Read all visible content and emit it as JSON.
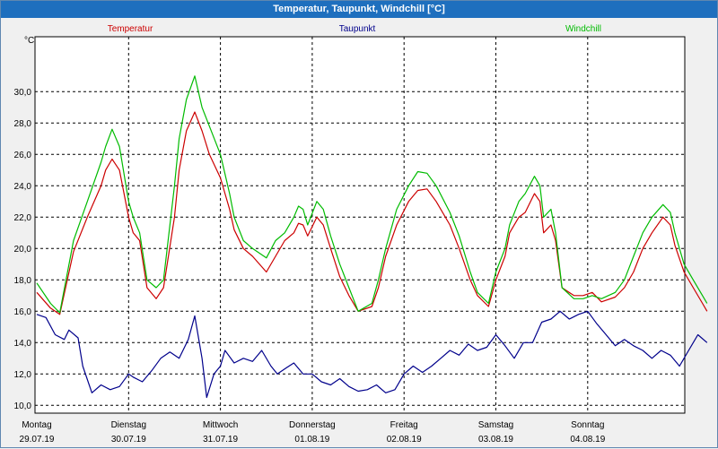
{
  "window": {
    "title": "Temperatur, Taupunkt, Windchill [°C]"
  },
  "chart_data": {
    "type": "line",
    "title": "Temperatur, Taupunkt, Windchill [°C]",
    "ylabel": "°C",
    "ylim": [
      9.5,
      33.5
    ],
    "xlim": [
      0,
      7.3
    ],
    "grid": true,
    "legend_position": "top",
    "y_ticks": [
      "10,0",
      "12,0",
      "14,0",
      "16,0",
      "18,0",
      "20,0",
      "22,0",
      "24,0",
      "26,0",
      "28,0",
      "30,0"
    ],
    "y_tick_values": [
      10,
      12,
      14,
      16,
      18,
      20,
      22,
      24,
      26,
      28,
      30
    ],
    "x_ticks": [
      {
        "pos": 0,
        "day": "Montag",
        "date": "29.07.19"
      },
      {
        "pos": 1,
        "day": "Dienstag",
        "date": "30.07.19"
      },
      {
        "pos": 2,
        "day": "Mittwoch",
        "date": "31.07.19"
      },
      {
        "pos": 3,
        "day": "Donnerstag",
        "date": "01.08.19"
      },
      {
        "pos": 4,
        "day": "Freitag",
        "date": "02.08.19"
      },
      {
        "pos": 5,
        "day": "Samstag",
        "date": "03.08.19"
      },
      {
        "pos": 6,
        "day": "Sonntag",
        "date": "04.08.19"
      }
    ],
    "series": [
      {
        "name": "Temperatur",
        "color": "#cc0000",
        "points": [
          [
            0.0,
            17.2
          ],
          [
            0.15,
            16.2
          ],
          [
            0.25,
            15.8
          ],
          [
            0.4,
            19.8
          ],
          [
            0.55,
            22.0
          ],
          [
            0.7,
            24.0
          ],
          [
            0.75,
            25.0
          ],
          [
            0.82,
            25.7
          ],
          [
            0.9,
            25.0
          ],
          [
            1.0,
            22.0
          ],
          [
            1.05,
            21.0
          ],
          [
            1.12,
            20.5
          ],
          [
            1.2,
            17.5
          ],
          [
            1.3,
            16.8
          ],
          [
            1.38,
            17.5
          ],
          [
            1.5,
            22.0
          ],
          [
            1.55,
            25.0
          ],
          [
            1.63,
            27.5
          ],
          [
            1.72,
            28.7
          ],
          [
            1.8,
            27.5
          ],
          [
            1.88,
            26.0
          ],
          [
            2.0,
            24.5
          ],
          [
            2.1,
            22.5
          ],
          [
            2.15,
            21.2
          ],
          [
            2.25,
            20.0
          ],
          [
            2.35,
            19.5
          ],
          [
            2.5,
            18.5
          ],
          [
            2.6,
            19.5
          ],
          [
            2.7,
            20.5
          ],
          [
            2.8,
            21.0
          ],
          [
            2.85,
            21.6
          ],
          [
            2.9,
            21.5
          ],
          [
            2.95,
            20.8
          ],
          [
            3.05,
            22.0
          ],
          [
            3.12,
            21.5
          ],
          [
            3.2,
            20.0
          ],
          [
            3.3,
            18.2
          ],
          [
            3.4,
            17.0
          ],
          [
            3.5,
            16.0
          ],
          [
            3.65,
            16.3
          ],
          [
            3.72,
            17.5
          ],
          [
            3.8,
            19.5
          ],
          [
            3.92,
            21.5
          ],
          [
            4.05,
            23.0
          ],
          [
            4.15,
            23.7
          ],
          [
            4.25,
            23.8
          ],
          [
            4.35,
            23.0
          ],
          [
            4.5,
            21.5
          ],
          [
            4.6,
            20.0
          ],
          [
            4.72,
            18.0
          ],
          [
            4.8,
            17.0
          ],
          [
            4.92,
            16.3
          ],
          [
            5.0,
            18.0
          ],
          [
            5.1,
            19.5
          ],
          [
            5.15,
            21.0
          ],
          [
            5.25,
            22.0
          ],
          [
            5.32,
            22.3
          ],
          [
            5.42,
            23.5
          ],
          [
            5.48,
            23.0
          ],
          [
            5.52,
            21.0
          ],
          [
            5.6,
            21.5
          ],
          [
            5.65,
            20.5
          ],
          [
            5.72,
            17.5
          ],
          [
            5.85,
            17.0
          ],
          [
            5.95,
            17.0
          ],
          [
            6.05,
            17.2
          ],
          [
            6.15,
            16.6
          ],
          [
            6.3,
            16.9
          ],
          [
            6.4,
            17.5
          ],
          [
            6.5,
            18.5
          ],
          [
            6.6,
            20.0
          ],
          [
            6.7,
            21.0
          ],
          [
            6.82,
            22.0
          ],
          [
            6.9,
            21.5
          ],
          [
            6.95,
            20.2
          ],
          [
            7.05,
            18.5
          ],
          [
            7.15,
            17.5
          ],
          [
            7.25,
            16.5
          ],
          [
            7.3,
            16.0
          ]
        ]
      },
      {
        "name": "Taupunkt",
        "color": "#00008b",
        "points": [
          [
            0.0,
            15.8
          ],
          [
            0.1,
            15.6
          ],
          [
            0.2,
            14.5
          ],
          [
            0.3,
            14.2
          ],
          [
            0.35,
            14.8
          ],
          [
            0.45,
            14.3
          ],
          [
            0.5,
            12.5
          ],
          [
            0.6,
            10.8
          ],
          [
            0.7,
            11.3
          ],
          [
            0.8,
            11.0
          ],
          [
            0.9,
            11.2
          ],
          [
            1.0,
            12.0
          ],
          [
            1.05,
            11.8
          ],
          [
            1.15,
            11.5
          ],
          [
            1.25,
            12.2
          ],
          [
            1.35,
            13.0
          ],
          [
            1.45,
            13.4
          ],
          [
            1.55,
            13.0
          ],
          [
            1.65,
            14.2
          ],
          [
            1.72,
            15.7
          ],
          [
            1.8,
            13.0
          ],
          [
            1.85,
            10.5
          ],
          [
            1.93,
            12.0
          ],
          [
            2.0,
            12.5
          ],
          [
            2.05,
            13.5
          ],
          [
            2.15,
            12.7
          ],
          [
            2.25,
            13.0
          ],
          [
            2.35,
            12.8
          ],
          [
            2.45,
            13.5
          ],
          [
            2.55,
            12.5
          ],
          [
            2.62,
            12.0
          ],
          [
            2.72,
            12.4
          ],
          [
            2.8,
            12.7
          ],
          [
            2.9,
            12.0
          ],
          [
            3.0,
            12.0
          ],
          [
            3.1,
            11.5
          ],
          [
            3.2,
            11.3
          ],
          [
            3.3,
            11.7
          ],
          [
            3.4,
            11.2
          ],
          [
            3.5,
            10.9
          ],
          [
            3.6,
            11.0
          ],
          [
            3.7,
            11.3
          ],
          [
            3.8,
            10.8
          ],
          [
            3.9,
            11.0
          ],
          [
            4.0,
            12.0
          ],
          [
            4.1,
            12.5
          ],
          [
            4.2,
            12.1
          ],
          [
            4.3,
            12.5
          ],
          [
            4.4,
            13.0
          ],
          [
            4.5,
            13.5
          ],
          [
            4.6,
            13.2
          ],
          [
            4.7,
            13.9
          ],
          [
            4.8,
            13.5
          ],
          [
            4.9,
            13.7
          ],
          [
            5.0,
            14.5
          ],
          [
            5.1,
            13.8
          ],
          [
            5.2,
            13.0
          ],
          [
            5.3,
            14.0
          ],
          [
            5.4,
            14.0
          ],
          [
            5.5,
            15.3
          ],
          [
            5.6,
            15.5
          ],
          [
            5.7,
            16.0
          ],
          [
            5.8,
            15.5
          ],
          [
            5.9,
            15.8
          ],
          [
            6.0,
            16.0
          ],
          [
            6.1,
            15.2
          ],
          [
            6.2,
            14.5
          ],
          [
            6.3,
            13.8
          ],
          [
            6.4,
            14.2
          ],
          [
            6.5,
            13.8
          ],
          [
            6.6,
            13.5
          ],
          [
            6.7,
            13.0
          ],
          [
            6.8,
            13.5
          ],
          [
            6.9,
            13.2
          ],
          [
            7.0,
            12.5
          ],
          [
            7.1,
            13.5
          ],
          [
            7.2,
            14.5
          ],
          [
            7.3,
            14.0
          ]
        ]
      },
      {
        "name": "Windchill",
        "color": "#00bb00",
        "points": [
          [
            0.0,
            17.8
          ],
          [
            0.15,
            16.5
          ],
          [
            0.25,
            15.9
          ],
          [
            0.4,
            20.5
          ],
          [
            0.55,
            23.0
          ],
          [
            0.7,
            25.5
          ],
          [
            0.75,
            26.5
          ],
          [
            0.82,
            27.6
          ],
          [
            0.9,
            26.5
          ],
          [
            1.0,
            23.0
          ],
          [
            1.05,
            22.0
          ],
          [
            1.12,
            21.0
          ],
          [
            1.2,
            18.0
          ],
          [
            1.3,
            17.5
          ],
          [
            1.38,
            18.0
          ],
          [
            1.5,
            24.0
          ],
          [
            1.55,
            27.0
          ],
          [
            1.63,
            29.5
          ],
          [
            1.72,
            31.0
          ],
          [
            1.8,
            29.0
          ],
          [
            1.88,
            27.8
          ],
          [
            2.0,
            26.0
          ],
          [
            2.1,
            23.5
          ],
          [
            2.15,
            22.0
          ],
          [
            2.25,
            20.5
          ],
          [
            2.35,
            20.0
          ],
          [
            2.5,
            19.4
          ],
          [
            2.6,
            20.5
          ],
          [
            2.7,
            21.0
          ],
          [
            2.8,
            22.0
          ],
          [
            2.85,
            22.7
          ],
          [
            2.9,
            22.5
          ],
          [
            2.95,
            21.5
          ],
          [
            3.05,
            23.0
          ],
          [
            3.12,
            22.5
          ],
          [
            3.2,
            20.8
          ],
          [
            3.3,
            19.0
          ],
          [
            3.4,
            17.5
          ],
          [
            3.5,
            16.0
          ],
          [
            3.65,
            16.5
          ],
          [
            3.72,
            18.0
          ],
          [
            3.8,
            20.0
          ],
          [
            3.92,
            22.5
          ],
          [
            4.05,
            24.0
          ],
          [
            4.15,
            24.9
          ],
          [
            4.25,
            24.8
          ],
          [
            4.35,
            24.0
          ],
          [
            4.5,
            22.3
          ],
          [
            4.6,
            20.8
          ],
          [
            4.72,
            18.5
          ],
          [
            4.8,
            17.2
          ],
          [
            4.92,
            16.5
          ],
          [
            5.0,
            18.5
          ],
          [
            5.1,
            20.0
          ],
          [
            5.15,
            21.5
          ],
          [
            5.25,
            23.0
          ],
          [
            5.32,
            23.5
          ],
          [
            5.42,
            24.6
          ],
          [
            5.48,
            24.0
          ],
          [
            5.52,
            22.0
          ],
          [
            5.6,
            22.5
          ],
          [
            5.65,
            21.0
          ],
          [
            5.72,
            17.5
          ],
          [
            5.85,
            16.8
          ],
          [
            5.95,
            16.8
          ],
          [
            6.05,
            17.0
          ],
          [
            6.15,
            16.8
          ],
          [
            6.3,
            17.2
          ],
          [
            6.4,
            18.0
          ],
          [
            6.5,
            19.5
          ],
          [
            6.6,
            21.0
          ],
          [
            6.7,
            22.0
          ],
          [
            6.82,
            22.8
          ],
          [
            6.9,
            22.3
          ],
          [
            6.95,
            21.0
          ],
          [
            7.05,
            19.0
          ],
          [
            7.15,
            18.0
          ],
          [
            7.25,
            17.0
          ],
          [
            7.3,
            16.5
          ]
        ]
      }
    ]
  }
}
